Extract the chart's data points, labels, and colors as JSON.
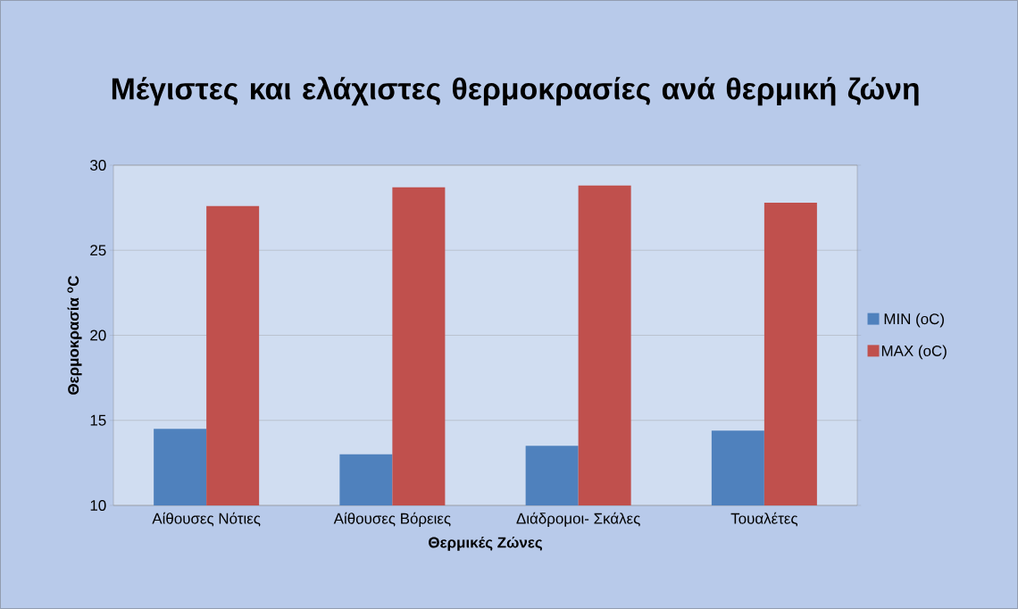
{
  "chart_data": {
    "type": "bar",
    "title": "Μέγιστες και ελάχιστες θερμοκρασίες ανά θερμική ζώνη",
    "xlabel": "Θερμικές Ζώνες",
    "ylabel": "Θερμοκρασία $^{o}$C",
    "categories": [
      "Αίθουσες Νότιες",
      "Αίθουσες Βόρειες",
      "Διάδρομοι- Σκάλες",
      "Τουαλέτες"
    ],
    "series": [
      {
        "name": "MIN (oC)",
        "color": "#4f81bd",
        "values": [
          14.5,
          13.0,
          13.5,
          14.4
        ]
      },
      {
        "name": "MAX (oC)",
        "color": "#c0504d",
        "values": [
          27.6,
          28.7,
          28.8,
          27.8
        ]
      }
    ],
    "ylim": [
      10,
      30
    ],
    "yticks": [
      10,
      15,
      20,
      25,
      30
    ],
    "grid": "y",
    "legend": "right"
  }
}
